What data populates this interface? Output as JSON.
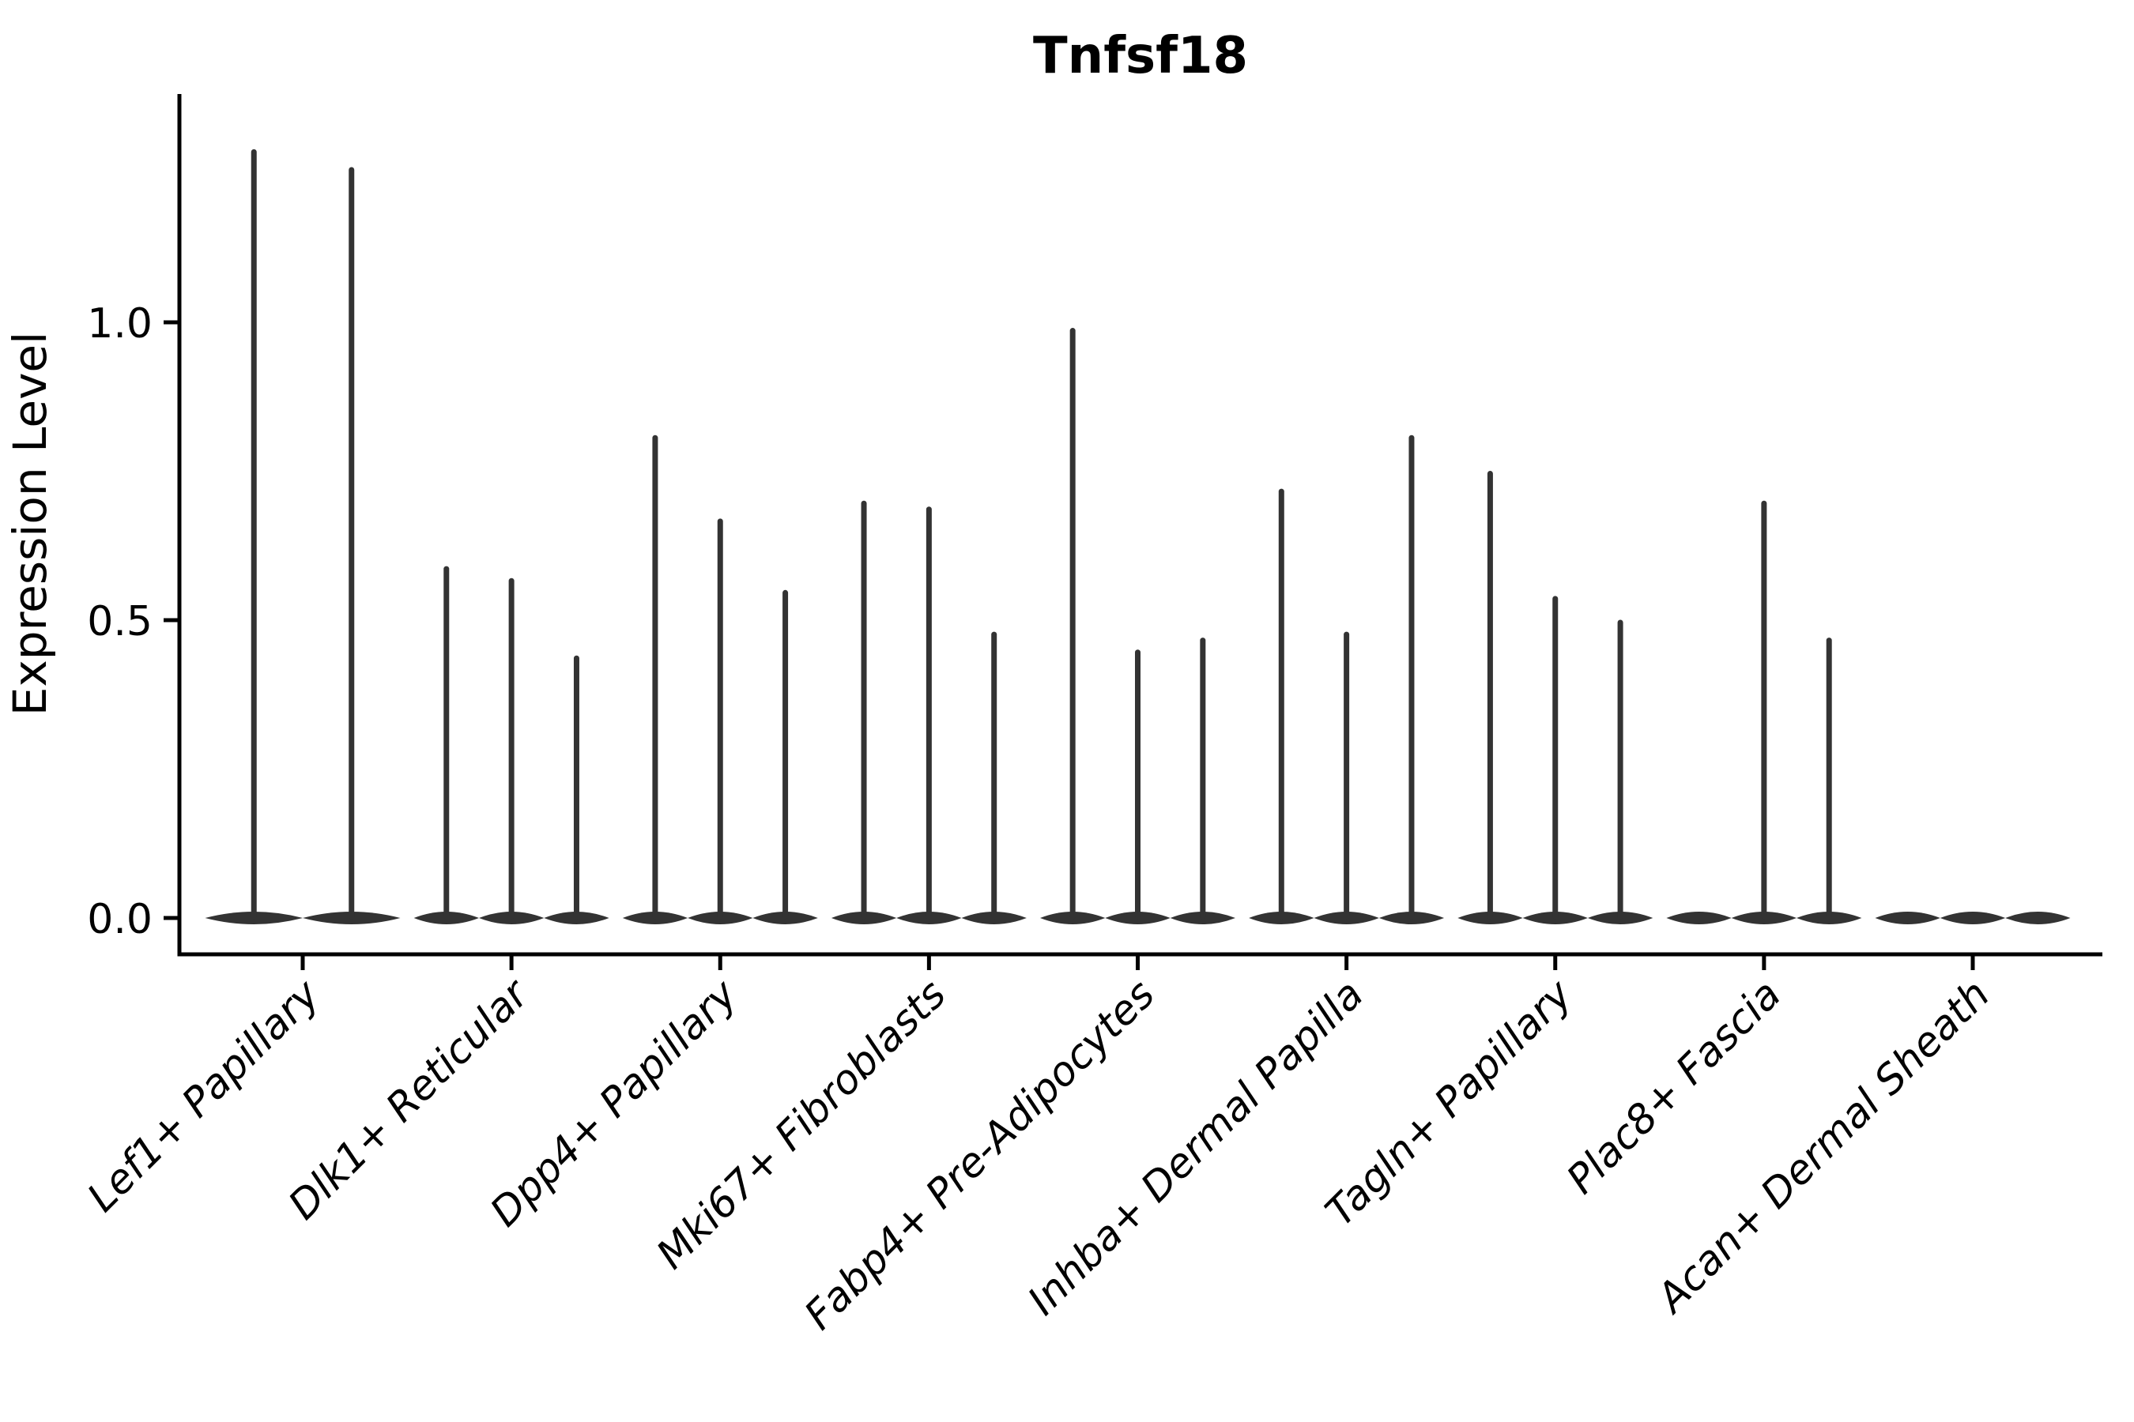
{
  "chart_data": {
    "type": "violin",
    "title": "Tnfsf18",
    "xlabel": "",
    "ylabel": "Expression Level",
    "ylim": [
      0,
      1.38
    ],
    "yticks": [
      0.0,
      0.5,
      1.0
    ],
    "ytick_labels": [
      "0.0",
      "0.5",
      "1.0"
    ],
    "grid": "off",
    "legend": "none",
    "categories": [
      "Lef1+ Papillary",
      "Dlk1+ Reticular",
      "Dpp4+ Papillary",
      "Mki67+ Fibroblasts",
      "Fabp4+ Pre-Adipocytes",
      "Inhba+ Dermal Papilla",
      "Tagln+ Papillary",
      "Plac8+ Fascia",
      "Acan+ Dermal Sheath"
    ],
    "groups": [
      {
        "category": "Lef1+ Papillary",
        "violin_max_expression": [
          1.29,
          1.26
        ]
      },
      {
        "category": "Dlk1+ Reticular",
        "violin_max_expression": [
          0.59,
          0.57,
          0.44
        ]
      },
      {
        "category": "Dpp4+ Papillary",
        "violin_max_expression": [
          0.81,
          0.67,
          0.55
        ]
      },
      {
        "category": "Mki67+ Fibroblasts",
        "violin_max_expression": [
          0.7,
          0.69,
          0.48
        ]
      },
      {
        "category": "Fabp4+ Pre-Adipocytes",
        "violin_max_expression": [
          0.99,
          0.45,
          0.47
        ]
      },
      {
        "category": "Inhba+ Dermal Papilla",
        "violin_max_expression": [
          0.72,
          0.48,
          0.81
        ]
      },
      {
        "category": "Tagln+ Papillary",
        "violin_max_expression": [
          0.75,
          0.54,
          0.5
        ]
      },
      {
        "category": "Plac8+ Fascia",
        "violin_max_expression": [
          0.0,
          0.7,
          0.47
        ]
      },
      {
        "category": "Acan+ Dermal Sheath",
        "violin_max_expression": [
          0.0,
          0.0,
          0.0
        ]
      }
    ],
    "violin_body_note": "distributions collapsed at 0 with thin spikes to max value",
    "colors": {
      "violin": "#333333",
      "axis": "#000000",
      "text": "#000000",
      "background": "#ffffff"
    }
  }
}
